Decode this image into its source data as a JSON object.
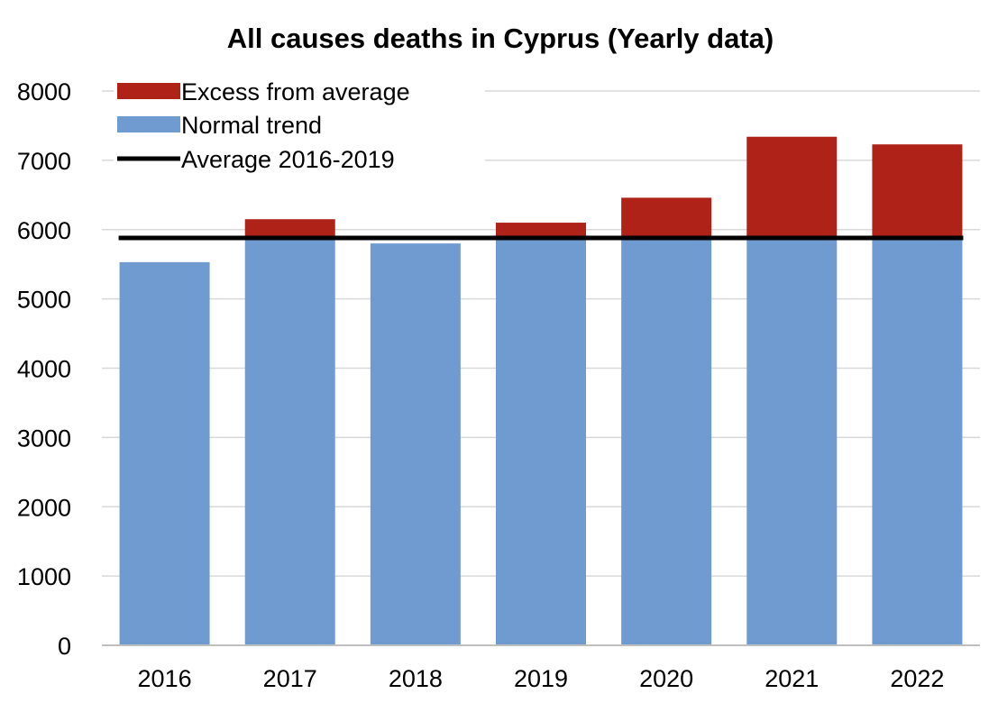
{
  "chart_data": {
    "type": "bar",
    "stacked": true,
    "title": "All causes deaths in Cyprus (Yearly data)",
    "xlabel": "",
    "ylabel": "",
    "ylim": [
      0,
      8000
    ],
    "yticks": [
      0,
      1000,
      2000,
      3000,
      4000,
      5000,
      6000,
      7000,
      8000
    ],
    "categories": [
      "2016",
      "2017",
      "2018",
      "2019",
      "2020",
      "2021",
      "2022"
    ],
    "series": [
      {
        "name": "Normal trend",
        "color": "#6f9bd1",
        "values": [
          5530,
          5880,
          5800,
          5880,
          5880,
          5880,
          5880
        ]
      },
      {
        "name": "Excess from average",
        "color": "#ae2218",
        "values": [
          0,
          270,
          0,
          220,
          580,
          1460,
          1350
        ]
      }
    ],
    "reference_line": {
      "name": "Average 2016-2019",
      "value": 5880,
      "color": "#000000"
    },
    "legend_position": "top-left",
    "grid": true
  }
}
